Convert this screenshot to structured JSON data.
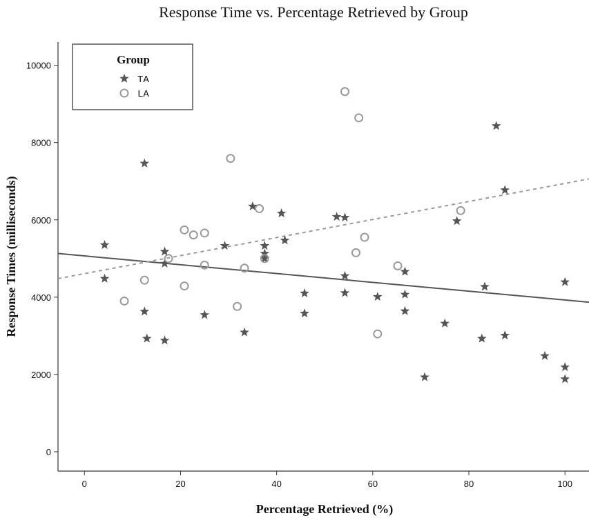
{
  "chart_data": {
    "type": "scatter",
    "title": "Response Time vs. Percentage Retrieved by Group",
    "xlabel": "Percentage Retrieved (%)",
    "ylabel": "Response Times (milliseconds)",
    "xlim": [
      -5.5,
      105
    ],
    "ylim": [
      -500,
      10600
    ],
    "xticks": [
      0,
      20,
      40,
      60,
      80,
      100
    ],
    "yticks": [
      0,
      2000,
      4000,
      6000,
      8000,
      10000
    ],
    "grid": false,
    "legend": {
      "title": "Group",
      "position": "top-left"
    },
    "series": [
      {
        "name": "TA",
        "marker": "star",
        "color": "#555555",
        "points": [
          [
            4.2,
            5350
          ],
          [
            4.2,
            4480
          ],
          [
            12.5,
            7460
          ],
          [
            12.5,
            3630
          ],
          [
            13,
            2930
          ],
          [
            16.7,
            5180
          ],
          [
            16.7,
            4870
          ],
          [
            16.7,
            2880
          ],
          [
            25,
            3540
          ],
          [
            29.2,
            5330
          ],
          [
            33.3,
            3090
          ],
          [
            35,
            6350
          ],
          [
            37.5,
            5330
          ],
          [
            37.5,
            5130
          ],
          [
            37.5,
            5000
          ],
          [
            41,
            6170
          ],
          [
            41.7,
            5470
          ],
          [
            45.8,
            4100
          ],
          [
            45.8,
            3580
          ],
          [
            52.5,
            6080
          ],
          [
            54.2,
            6060
          ],
          [
            54.2,
            4550
          ],
          [
            54.2,
            4110
          ],
          [
            61,
            4010
          ],
          [
            66.7,
            4660
          ],
          [
            66.7,
            4070
          ],
          [
            66.7,
            3640
          ],
          [
            70.8,
            1930
          ],
          [
            75,
            3320
          ],
          [
            77.5,
            5970
          ],
          [
            82.7,
            2930
          ],
          [
            83.3,
            4270
          ],
          [
            85.7,
            8430
          ],
          [
            87.5,
            6770
          ],
          [
            87.5,
            3010
          ],
          [
            95.8,
            2480
          ],
          [
            100,
            4390
          ],
          [
            100,
            2190
          ],
          [
            100,
            1880
          ]
        ],
        "fit_line": {
          "style": "solid",
          "x": [
            -5.5,
            105
          ],
          "y": [
            5130,
            3870
          ]
        }
      },
      {
        "name": "LA",
        "marker": "circle",
        "color": "#999999",
        "points": [
          [
            8.3,
            3900
          ],
          [
            12.5,
            4440
          ],
          [
            17.5,
            5000
          ],
          [
            20.8,
            5740
          ],
          [
            20.8,
            4290
          ],
          [
            22.7,
            5610
          ],
          [
            25,
            5660
          ],
          [
            25,
            4830
          ],
          [
            30.4,
            7590
          ],
          [
            31.8,
            3760
          ],
          [
            33.3,
            4750
          ],
          [
            36.4,
            6290
          ],
          [
            37.5,
            5000
          ],
          [
            54.2,
            9320
          ],
          [
            56.5,
            5150
          ],
          [
            57.1,
            8640
          ],
          [
            58.3,
            5550
          ],
          [
            61,
            3050
          ],
          [
            65.2,
            4810
          ],
          [
            78.3,
            6240
          ]
        ],
        "fit_line": {
          "style": "dashed",
          "x": [
            -5.5,
            105
          ],
          "y": [
            4480,
            7060
          ]
        }
      }
    ]
  }
}
